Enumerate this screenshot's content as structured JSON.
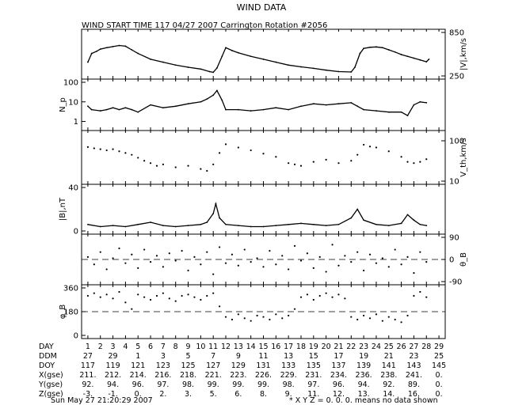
{
  "title": "WIND DATA",
  "subtitle": "WIND START TIME 117 04/27 2007 Carrington Rotation #2056",
  "footer": {
    "timestamp": "Sun May 27 21:20:29 2007",
    "note": "* X Y Z = 0. 0. 0. means no data shown"
  },
  "chart_data": [
    {
      "type": "line",
      "panel": "speed",
      "ylabel": "|V|,km/s",
      "ylabel_side": "right",
      "ylim": [
        250,
        850
      ],
      "yticks": [
        "850",
        "250"
      ],
      "x": [
        1,
        1.3,
        1.7,
        2,
        2.5,
        3,
        3.5,
        4,
        4.5,
        5,
        6,
        7,
        8,
        9,
        10,
        10.7,
        11,
        11.3,
        11.7,
        12,
        12.5,
        13,
        14,
        15,
        16,
        17,
        18,
        19,
        20,
        21,
        22,
        22.3,
        22.7,
        23,
        23.5,
        24,
        24.5,
        25,
        25.5,
        26,
        26.5,
        27,
        27.5,
        28,
        28.2
      ],
      "y": [
        440,
        560,
        590,
        620,
        640,
        655,
        670,
        660,
        610,
        560,
        480,
        440,
        400,
        370,
        345,
        310,
        300,
        360,
        520,
        640,
        600,
        570,
        520,
        480,
        440,
        400,
        375,
        355,
        330,
        310,
        305,
        370,
        560,
        630,
        645,
        650,
        640,
        610,
        580,
        545,
        520,
        495,
        470,
        445,
        480
      ],
      "grid": false
    },
    {
      "type": "line",
      "panel": "density",
      "ylabel": "N_p",
      "ylabel_side": "left",
      "scale": "log",
      "ylim": [
        0.5,
        100
      ],
      "yticks": [
        "100",
        "10",
        "1"
      ],
      "x": [
        1,
        1.3,
        2,
        2.5,
        3,
        3.5,
        4,
        4.5,
        5,
        6,
        7,
        8,
        9,
        10,
        10.5,
        11,
        11.3,
        11.7,
        12,
        13,
        14,
        15,
        16,
        17,
        18,
        19,
        20,
        21,
        22,
        22.5,
        23,
        24,
        25,
        26,
        26.5,
        27,
        27.5,
        28
      ],
      "y": [
        6,
        4,
        3.5,
        4,
        5,
        4,
        5,
        4,
        3,
        7,
        5,
        6,
        8,
        10,
        14,
        22,
        38,
        12,
        4,
        4,
        3.5,
        4,
        5,
        4,
        6,
        8,
        7,
        8,
        9,
        6,
        4,
        3.5,
        3,
        3,
        2,
        7,
        10,
        9
      ],
      "grid": false
    },
    {
      "type": "scatter",
      "panel": "thermal-speed",
      "ylabel": "V_th,km/s",
      "ylabel_side": "right",
      "scale": "log",
      "ylim": [
        10,
        150
      ],
      "yticks": [
        "100",
        "10"
      ],
      "x": [
        1,
        1.5,
        2,
        2.5,
        3,
        3.5,
        4,
        4.5,
        5,
        5.5,
        6,
        6.5,
        7,
        8,
        9,
        10,
        10.5,
        11,
        11.5,
        12,
        13,
        14,
        15,
        16,
        17,
        17.5,
        18,
        19,
        20,
        21,
        22,
        22.5,
        23,
        23.5,
        24,
        25,
        26,
        26.5,
        27,
        27.5,
        28
      ],
      "y": [
        70,
        65,
        62,
        58,
        62,
        55,
        50,
        45,
        38,
        32,
        28,
        24,
        26,
        22,
        24,
        20,
        18,
        26,
        50,
        82,
        68,
        58,
        48,
        40,
        28,
        26,
        24,
        30,
        34,
        28,
        32,
        45,
        80,
        72,
        68,
        55,
        40,
        30,
        28,
        30,
        35
      ],
      "grid": false
    },
    {
      "type": "line",
      "panel": "field",
      "ylabel": "|B|,nT",
      "ylabel_side": "left",
      "ylim": [
        0,
        40
      ],
      "yticks": [
        "40",
        "0"
      ],
      "x": [
        1,
        2,
        3,
        4,
        5,
        6,
        7,
        8,
        9,
        10,
        10.5,
        11,
        11.2,
        11.5,
        12,
        13,
        14,
        15,
        16,
        17,
        18,
        19,
        20,
        21,
        22,
        22.5,
        23,
        24,
        25,
        26,
        26.5,
        27,
        27.5,
        28
      ],
      "y": [
        6,
        4,
        5,
        4,
        6,
        8,
        5,
        4,
        5,
        6,
        8,
        16,
        25,
        12,
        6,
        5,
        4,
        4,
        5,
        6,
        7,
        6,
        5,
        6,
        12,
        20,
        10,
        6,
        5,
        7,
        15,
        10,
        6,
        5
      ],
      "grid": false
    },
    {
      "type": "scatter",
      "panel": "theta",
      "ylabel": "θ_B",
      "ylabel_side": "right",
      "ylim": [
        -90,
        90
      ],
      "yticks": [
        "90",
        "0",
        "-90"
      ],
      "x": [
        1,
        1.5,
        2,
        2.5,
        3,
        3.5,
        4,
        4.5,
        5,
        5.5,
        6,
        6.5,
        7,
        7.5,
        8,
        8.5,
        9,
        9.5,
        10,
        10.5,
        11,
        11.5,
        12,
        12.5,
        13,
        13.5,
        14,
        14.5,
        15,
        15.5,
        16,
        16.5,
        17,
        17.5,
        18,
        18.5,
        19,
        19.5,
        20,
        20.5,
        21,
        21.5,
        22,
        22.5,
        23,
        23.5,
        24,
        24.5,
        25,
        25.5,
        26,
        26.5,
        27,
        27.5,
        28
      ],
      "y": [
        10,
        -20,
        30,
        -40,
        5,
        45,
        -15,
        20,
        -35,
        40,
        -10,
        15,
        -30,
        25,
        -5,
        35,
        -45,
        10,
        -20,
        30,
        -60,
        50,
        -15,
        20,
        -25,
        40,
        -10,
        5,
        -30,
        35,
        -20,
        15,
        -40,
        55,
        -5,
        25,
        -35,
        10,
        -50,
        60,
        -25,
        15,
        -10,
        30,
        -45,
        20,
        -15,
        5,
        -30,
        40,
        -20,
        10,
        -55,
        30,
        -10
      ],
      "grid": false
    },
    {
      "type": "scatter",
      "panel": "phi",
      "ylabel": "φ_B",
      "ylabel_side": "left",
      "ylim": [
        0,
        360
      ],
      "yticks": [
        "360",
        "180",
        "0"
      ],
      "x": [
        1,
        1.5,
        2,
        2.5,
        3,
        3.5,
        4,
        4.5,
        5,
        5.5,
        6,
        6.5,
        7,
        7.5,
        8,
        8.5,
        9,
        9.5,
        10,
        10.5,
        11,
        11.5,
        12,
        12.5,
        13,
        13.5,
        14,
        14.5,
        15,
        15.5,
        16,
        16.5,
        17,
        17.5,
        18,
        18.5,
        19,
        19.5,
        20,
        20.5,
        21,
        21.5,
        22,
        22.5,
        23,
        23.5,
        24,
        24.5,
        25,
        25.5,
        26,
        26.5,
        27,
        27.5,
        28
      ],
      "y": [
        300,
        320,
        290,
        310,
        280,
        330,
        250,
        200,
        310,
        290,
        270,
        300,
        320,
        280,
        260,
        300,
        310,
        290,
        270,
        300,
        320,
        220,
        140,
        120,
        160,
        130,
        110,
        150,
        140,
        120,
        160,
        130,
        150,
        200,
        290,
        310,
        270,
        300,
        320,
        290,
        310,
        280,
        140,
        120,
        150,
        130,
        160,
        110,
        140,
        120,
        100,
        150,
        300,
        330,
        290
      ],
      "grid": false
    }
  ],
  "axis_table": {
    "rows": [
      {
        "label": "DAY",
        "values": [
          "1",
          "2",
          "3",
          "4",
          "5",
          "6",
          "7",
          "8",
          "9",
          "10",
          "11",
          "12",
          "13",
          "14",
          "15",
          "16",
          "17",
          "18",
          "19",
          "20",
          "21",
          "22",
          "23",
          "24",
          "25",
          "26",
          "27",
          "28",
          "29"
        ]
      },
      {
        "label": "DDM",
        "values": [
          "27",
          "29",
          "1",
          "3",
          "5",
          "7",
          "9",
          "11",
          "13",
          "15",
          "17",
          "19",
          "21",
          "23",
          "25"
        ]
      },
      {
        "label": "DOY",
        "values": [
          "117",
          "119",
          "121",
          "123",
          "125",
          "127",
          "129",
          "131",
          "133",
          "135",
          "137",
          "139",
          "141",
          "143",
          "145"
        ]
      },
      {
        "label": "X(gse)",
        "values": [
          "211.",
          "212.",
          "214.",
          "216.",
          "218.",
          "221.",
          "223.",
          "226.",
          "229.",
          "231.",
          "234.",
          "236.",
          "238.",
          "241.",
          "0."
        ]
      },
      {
        "label": "Y(gse)",
        "values": [
          "92.",
          "94.",
          "96.",
          "97.",
          "98.",
          "99.",
          "99.",
          "99.",
          "98.",
          "97.",
          "96.",
          "94.",
          "92.",
          "89.",
          "0."
        ]
      },
      {
        "label": "Z(gse)",
        "values": [
          "-3.",
          "-1.",
          "0.",
          "2.",
          "3.",
          "5.",
          "6.",
          "8.",
          "9.",
          "11.",
          "12.",
          "13.",
          "14.",
          "16.",
          "0."
        ]
      }
    ]
  }
}
